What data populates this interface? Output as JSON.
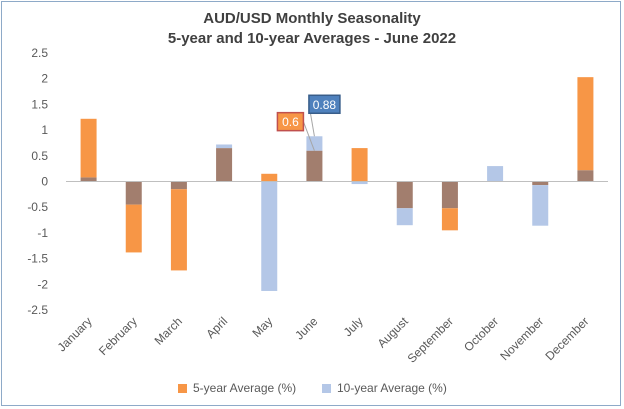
{
  "chart_data": {
    "type": "bar",
    "title": "AUD/USD Monthly Seasonality",
    "subtitle": "5-year and 10-year Averages - June 2022",
    "categories": [
      "January",
      "February",
      "March",
      "April",
      "May",
      "June",
      "July",
      "August",
      "September",
      "October",
      "November",
      "December"
    ],
    "series": [
      {
        "name": "5-year Average (%)",
        "color": "#f79646",
        "values": [
          1.22,
          -1.38,
          -1.73,
          0.65,
          0.15,
          0.6,
          0.65,
          -0.52,
          -0.95,
          0.0,
          -0.07,
          2.03
        ]
      },
      {
        "name": "10-year Average (%)",
        "color": "#b4c7e7",
        "values": [
          0.08,
          -0.45,
          -0.15,
          0.72,
          -2.13,
          0.88,
          -0.05,
          -0.85,
          -0.52,
          0.3,
          -0.86,
          0.22
        ]
      }
    ],
    "overlap_color": "#a27e6e",
    "ylim": [
      -2.5,
      2.5
    ],
    "yticks": [
      "2.5",
      "2",
      "1.5",
      "1",
      "0.5",
      "0",
      "-0.5",
      "-1",
      "-1.5",
      "-2",
      "-2.5"
    ],
    "annotations": [
      {
        "text": "0.6",
        "month": "June",
        "series": "5-year Average (%)",
        "fill": "#f79646",
        "border": "#c0504d",
        "text_color": "#ffffff"
      },
      {
        "text": "0.88",
        "month": "June",
        "series": "10-year Average (%)",
        "fill": "#4f81bd",
        "border": "#385d8a",
        "text_color": "#ffffff"
      }
    ],
    "grid": false,
    "legend_position": "bottom"
  }
}
